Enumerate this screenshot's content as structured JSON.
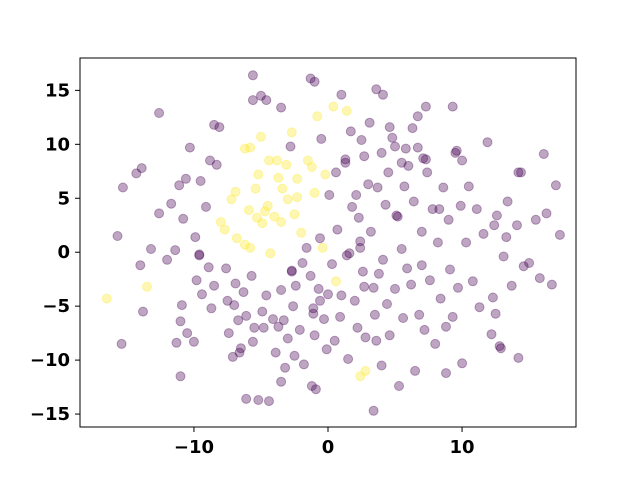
{
  "chart_data": {
    "type": "scatter",
    "title": "",
    "xlabel": "",
    "ylabel": "",
    "xlim": [
      -18.5,
      18.5
    ],
    "ylim": [
      -16.2,
      18.0
    ],
    "grid": false,
    "xticks": [
      -10,
      0,
      10
    ],
    "xtick_labels": [
      "−10",
      "0",
      "10"
    ],
    "yticks": [
      -15,
      -10,
      -5,
      0,
      5,
      10,
      15
    ],
    "ytick_labels": [
      "−15",
      "−10",
      "−5",
      "0",
      "5",
      "10",
      "15"
    ],
    "marker_alpha": 0.35,
    "series": [
      {
        "color": "#fde725",
        "points": [
          [
            -16.5,
            -4.3
          ],
          [
            -13.5,
            -3.2
          ],
          [
            -8.0,
            2.8
          ],
          [
            -7.7,
            2.1
          ],
          [
            -7.2,
            4.9
          ],
          [
            -6.9,
            5.6
          ],
          [
            -6.8,
            1.3
          ],
          [
            -6.2,
            9.6
          ],
          [
            -6.2,
            0.7
          ],
          [
            -5.9,
            3.9
          ],
          [
            -5.8,
            9.7
          ],
          [
            -5.8,
            0.4
          ],
          [
            -5.4,
            5.9
          ],
          [
            -5.3,
            3.2
          ],
          [
            -5.2,
            7.2
          ],
          [
            -5.0,
            10.7
          ],
          [
            -4.9,
            2.7
          ],
          [
            -4.7,
            3.8
          ],
          [
            -4.5,
            4.3
          ],
          [
            -4.4,
            8.5
          ],
          [
            -4.3,
            -0.1
          ],
          [
            -4.0,
            3.3
          ],
          [
            -3.8,
            8.5
          ],
          [
            -3.7,
            6.9
          ],
          [
            -3.5,
            2.8
          ],
          [
            -3.4,
            5.9
          ],
          [
            -3.1,
            8.1
          ],
          [
            -3.0,
            4.9
          ],
          [
            -2.7,
            11.1
          ],
          [
            -2.5,
            3.5
          ],
          [
            -2.3,
            6.8
          ],
          [
            -2.3,
            5.1
          ],
          [
            -2.0,
            1.8
          ],
          [
            -1.5,
            8.5
          ],
          [
            -1.2,
            7.9
          ],
          [
            -1.0,
            5.5
          ],
          [
            -0.8,
            12.6
          ],
          [
            -0.4,
            0.4
          ],
          [
            -0.2,
            7.2
          ],
          [
            0.4,
            13.5
          ],
          [
            0.6,
            -2.7
          ],
          [
            1.4,
            13.1
          ],
          [
            2.4,
            -11.5
          ],
          [
            2.8,
            -11.0
          ]
        ]
      },
      {
        "color": "#440154",
        "points": [
          [
            -15.7,
            1.5
          ],
          [
            -15.3,
            6.0
          ],
          [
            -14.3,
            7.3
          ],
          [
            -14.0,
            -1.2
          ],
          [
            -13.9,
            7.8
          ],
          [
            -13.8,
            -5.5
          ],
          [
            -13.2,
            0.3
          ],
          [
            -12.6,
            3.6
          ],
          [
            -12.6,
            12.9
          ],
          [
            -12.0,
            -0.7
          ],
          [
            -11.7,
            4.5
          ],
          [
            -11.4,
            0.2
          ],
          [
            -11.3,
            -8.4
          ],
          [
            -11.1,
            6.2
          ],
          [
            -11.0,
            -6.4
          ],
          [
            -10.9,
            -4.9
          ],
          [
            -10.8,
            3.1
          ],
          [
            -10.6,
            6.8
          ],
          [
            -10.5,
            -7.5
          ],
          [
            -10.3,
            9.7
          ],
          [
            -10.0,
            -8.3
          ],
          [
            -9.9,
            1.4
          ],
          [
            -9.8,
            -2.6
          ],
          [
            -9.6,
            -0.3
          ],
          [
            -9.5,
            6.6
          ],
          [
            -9.4,
            -3.9
          ],
          [
            -9.1,
            4.2
          ],
          [
            -8.9,
            -1.4
          ],
          [
            -8.8,
            8.5
          ],
          [
            -8.7,
            -5.2
          ],
          [
            -8.5,
            -3.1
          ],
          [
            -8.5,
            11.8
          ],
          [
            -8.3,
            8.1
          ],
          [
            -8.1,
            11.6
          ],
          [
            -7.6,
            -1.5
          ],
          [
            -7.5,
            -4.5
          ],
          [
            -7.4,
            -7.5
          ],
          [
            -7.1,
            -9.7
          ],
          [
            -7.0,
            -4.9
          ],
          [
            -6.9,
            -2.9
          ],
          [
            -6.7,
            -6.3
          ],
          [
            -6.6,
            -9.3
          ],
          [
            -6.3,
            -3.7
          ],
          [
            -6.1,
            -5.9
          ],
          [
            -5.7,
            -2.2
          ],
          [
            -5.6,
            14.1
          ],
          [
            -5.6,
            -8.3
          ],
          [
            -5.5,
            -7.0
          ],
          [
            -5.2,
            -13.7
          ],
          [
            -4.9,
            -5.5
          ],
          [
            -4.8,
            -7.0
          ],
          [
            -4.6,
            -4.0
          ],
          [
            -4.4,
            -13.8
          ],
          [
            -4.1,
            -6.2
          ],
          [
            -3.9,
            -9.3
          ],
          [
            -3.7,
            -6.9
          ],
          [
            -3.5,
            -12.0
          ],
          [
            -3.5,
            -3.5
          ],
          [
            -3.3,
            -6.3
          ],
          [
            -3.2,
            -10.7
          ],
          [
            -3.0,
            -8.0
          ],
          [
            -2.8,
            9.8
          ],
          [
            -2.7,
            -1.7
          ],
          [
            -2.6,
            -5.0
          ],
          [
            -2.5,
            -9.6
          ],
          [
            -2.4,
            -3.1
          ],
          [
            -2.1,
            -7.2
          ],
          [
            -1.9,
            -1.0
          ],
          [
            -1.8,
            -10.4
          ],
          [
            -1.6,
            0.4
          ],
          [
            -1.3,
            -2.2
          ],
          [
            -1.2,
            -12.4
          ],
          [
            -1.1,
            -5.7
          ],
          [
            -1.0,
            -7.7
          ],
          [
            -0.9,
            -12.7
          ],
          [
            -0.7,
            -3.4
          ],
          [
            -0.6,
            1.3
          ],
          [
            -0.6,
            -4.5
          ],
          [
            -0.5,
            10.5
          ],
          [
            -0.3,
            -6.2
          ],
          [
            -0.1,
            -9.0
          ],
          [
            0.0,
            -3.9
          ],
          [
            0.1,
            5.3
          ],
          [
            0.3,
            -1.1
          ],
          [
            0.5,
            -8.2
          ],
          [
            0.6,
            7.4
          ],
          [
            0.7,
            2.1
          ],
          [
            0.9,
            -6.0
          ],
          [
            1.0,
            -4.0
          ],
          [
            1.3,
            8.3
          ],
          [
            1.5,
            -9.9
          ],
          [
            1.6,
            -0.1
          ],
          [
            1.8,
            4.2
          ],
          [
            2.0,
            -4.5
          ],
          [
            2.1,
            5.3
          ],
          [
            2.2,
            -7.0
          ],
          [
            2.3,
            3.2
          ],
          [
            2.4,
            1.0
          ],
          [
            2.6,
            -1.8
          ],
          [
            2.7,
            -3.2
          ],
          [
            2.8,
            -7.9
          ],
          [
            3.0,
            6.3
          ],
          [
            3.1,
            12.0
          ],
          [
            3.2,
            1.9
          ],
          [
            3.4,
            -3.3
          ],
          [
            3.5,
            -5.8
          ],
          [
            3.6,
            -8.2
          ],
          [
            3.7,
            6.0
          ],
          [
            3.8,
            -2.0
          ],
          [
            4.0,
            -10.5
          ],
          [
            4.0,
            9.2
          ],
          [
            4.1,
            -0.7
          ],
          [
            4.3,
            4.4
          ],
          [
            4.4,
            -4.8
          ],
          [
            4.5,
            7.4
          ],
          [
            4.6,
            -7.7
          ],
          [
            4.8,
            10.6
          ],
          [
            5.0,
            -3.4
          ],
          [
            5.2,
            3.3
          ],
          [
            5.3,
            -12.4
          ],
          [
            5.5,
            0.3
          ],
          [
            5.6,
            -6.1
          ],
          [
            5.7,
            6.1
          ],
          [
            5.9,
            -1.5
          ],
          [
            6.0,
            8.0
          ],
          [
            6.2,
            -3.0
          ],
          [
            6.4,
            4.7
          ],
          [
            6.5,
            -11.0
          ],
          [
            6.7,
            9.7
          ],
          [
            6.8,
            -5.8
          ],
          [
            7.0,
            1.9
          ],
          [
            7.2,
            -7.2
          ],
          [
            7.4,
            7.4
          ],
          [
            7.6,
            -2.6
          ],
          [
            7.8,
            4.0
          ],
          [
            8.0,
            -8.5
          ],
          [
            8.2,
            0.9
          ],
          [
            8.4,
            -4.3
          ],
          [
            8.6,
            6.0
          ],
          [
            8.8,
            -11.2
          ],
          [
            9.0,
            3.0
          ],
          [
            9.1,
            -1.6
          ],
          [
            9.3,
            -6.0
          ],
          [
            9.5,
            9.2
          ],
          [
            9.7,
            -3.3
          ],
          [
            9.9,
            4.3
          ],
          [
            10.0,
            -10.3
          ],
          [
            10.3,
            0.9
          ],
          [
            10.5,
            6.1
          ],
          [
            10.8,
            -2.7
          ],
          [
            11.1,
            4.0
          ],
          [
            11.3,
            -5.1
          ],
          [
            11.6,
            1.7
          ],
          [
            11.9,
            10.2
          ],
          [
            12.2,
            -7.6
          ],
          [
            12.3,
            -4.2
          ],
          [
            12.6,
            3.4
          ],
          [
            12.8,
            -8.7
          ],
          [
            13.1,
            -0.4
          ],
          [
            13.4,
            4.7
          ],
          [
            13.7,
            -3.1
          ],
          [
            14.1,
            2.5
          ],
          [
            14.2,
            -9.8
          ],
          [
            14.4,
            7.4
          ],
          [
            14.6,
            -1.3
          ],
          [
            15.0,
            -1.0
          ],
          [
            15.5,
            3.0
          ],
          [
            15.8,
            -2.4
          ],
          [
            16.1,
            9.1
          ],
          [
            16.3,
            3.6
          ],
          [
            16.7,
            -3.0
          ],
          [
            17.0,
            6.2
          ],
          [
            17.3,
            1.6
          ],
          [
            -6.1,
            -13.6
          ],
          [
            -5.6,
            16.4
          ],
          [
            -5.0,
            14.5
          ],
          [
            -4.6,
            14.1
          ],
          [
            -3.5,
            13.4
          ],
          [
            -1.3,
            16.1
          ],
          [
            -1.0,
            15.8
          ],
          [
            1.0,
            14.6
          ],
          [
            1.4,
            -0.3
          ],
          [
            1.7,
            11.2
          ],
          [
            2.4,
            0.4
          ],
          [
            2.5,
            10.4
          ],
          [
            2.7,
            8.9
          ],
          [
            3.6,
            15.1
          ],
          [
            4.1,
            14.6
          ],
          [
            4.6,
            11.6
          ],
          [
            5.0,
            9.8
          ],
          [
            5.5,
            8.3
          ],
          [
            5.8,
            9.6
          ],
          [
            6.3,
            11.5
          ],
          [
            6.7,
            12.6
          ],
          [
            7.1,
            8.7
          ],
          [
            7.3,
            13.5
          ],
          [
            8.3,
            4.0
          ],
          [
            9.3,
            13.5
          ],
          [
            9.6,
            9.4
          ],
          [
            10.0,
            8.5
          ],
          [
            12.4,
            2.5
          ],
          [
            13.3,
            1.4
          ],
          [
            3.4,
            -14.7
          ],
          [
            7.0,
            -1.2
          ],
          [
            -6.5,
            -8.9
          ],
          [
            -11.0,
            -11.5
          ],
          [
            -15.4,
            -8.5
          ],
          [
            -9.6,
            -0.2
          ],
          [
            8.8,
            -6.9
          ],
          [
            12.5,
            -5.7
          ],
          [
            12.9,
            -8.9
          ],
          [
            14.2,
            7.4
          ],
          [
            5.1,
            3.4
          ],
          [
            -1.1,
            -5.2
          ],
          [
            -2.7,
            -1.8
          ],
          [
            1.3,
            8.6
          ],
          [
            7.3,
            8.6
          ]
        ]
      }
    ]
  }
}
